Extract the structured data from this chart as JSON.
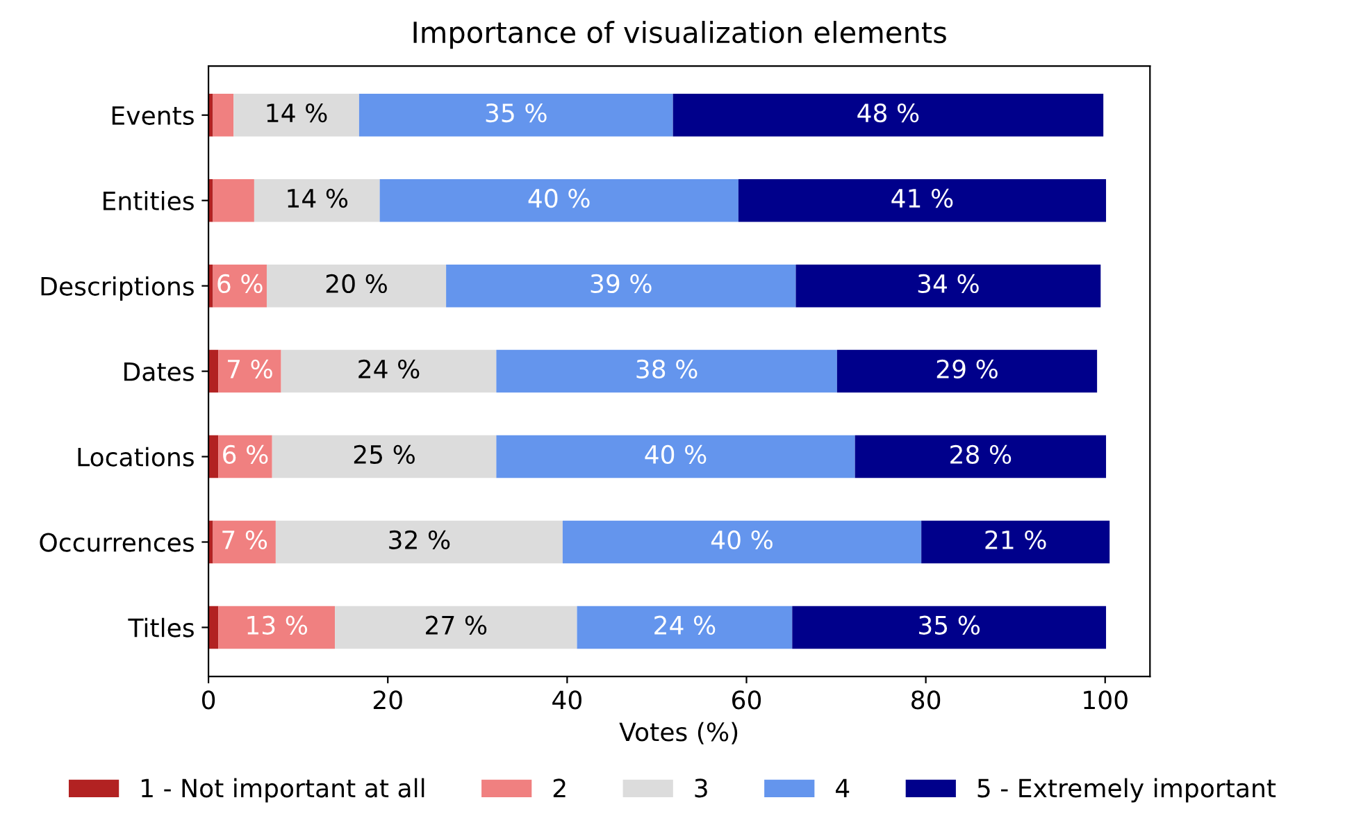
{
  "chart_data": {
    "type": "bar",
    "orientation": "horizontal",
    "stacked": true,
    "title": "Importance of visualization elements",
    "xlabel": "Votes (%)",
    "categories": [
      "Events",
      "Entities",
      "Descriptions",
      "Dates",
      "Locations",
      "Occurrences",
      "Titles"
    ],
    "series": [
      {
        "name": "1 - Not important at all",
        "color": "#b22222",
        "values": [
          0.5,
          0.5,
          0.5,
          1.1,
          1.1,
          0.5,
          1.1
        ],
        "value_labels": [
          null,
          null,
          null,
          null,
          null,
          null,
          null
        ]
      },
      {
        "name": "2",
        "color": "#f08080",
        "values": [
          2.3,
          4.6,
          6,
          7,
          6,
          7,
          13
        ],
        "value_labels": [
          null,
          null,
          "6 %",
          "7 %",
          "6 %",
          "7 %",
          "13 %"
        ]
      },
      {
        "name": "3",
        "color": "#dcdcdc",
        "values": [
          14,
          14,
          20,
          24,
          25,
          32,
          27
        ],
        "value_labels": [
          "14 %",
          "14 %",
          "20 %",
          "24 %",
          "25 %",
          "32 %",
          "27 %"
        ]
      },
      {
        "name": "4",
        "color": "#6495ed",
        "values": [
          35,
          40,
          39,
          38,
          40,
          40,
          24
        ],
        "value_labels": [
          "35 %",
          "40 %",
          "39 %",
          "38 %",
          "40 %",
          "40 %",
          "24 %"
        ]
      },
      {
        "name": "5 - Extremely important",
        "color": "#00008b",
        "values": [
          48,
          41,
          34,
          29,
          28,
          21,
          35
        ],
        "value_labels": [
          "48 %",
          "41 %",
          "34 %",
          "29 %",
          "28 %",
          "21 %",
          "35 %"
        ]
      }
    ],
    "xlim": [
      0,
      105
    ],
    "xticks": [
      0,
      20,
      40,
      60,
      80,
      100
    ],
    "grid": false,
    "legend": "bottom"
  }
}
